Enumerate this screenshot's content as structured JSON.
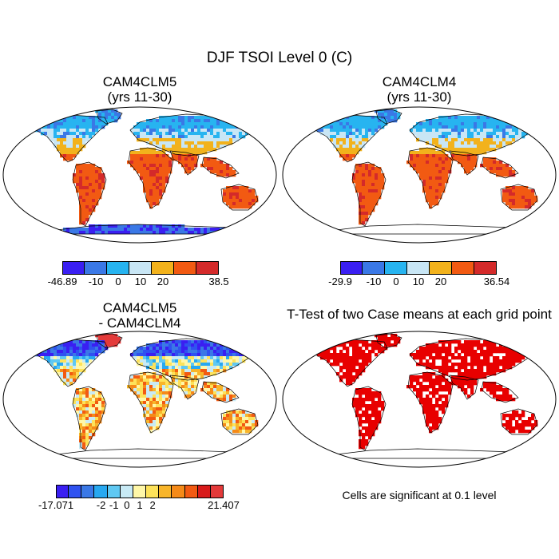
{
  "title": "DJF TSOI Level 0 (C)",
  "panels": [
    {
      "id": "p1",
      "title_line1": "CAM4CLM5",
      "title_line2": "(yrs 11-30)",
      "palette": "abs",
      "antarctica_colored": true
    },
    {
      "id": "p2",
      "title_line1": "CAM4CLM4",
      "title_line2": "(yrs 11-30)",
      "palette": "abs",
      "antarctica_colored": false
    },
    {
      "id": "p3",
      "title_line1": "CAM4CLM5",
      "title_line2": "- CAM4CLM4",
      "palette": "diff",
      "antarctica_colored": false
    },
    {
      "id": "p4",
      "title_line1": "T-Test of two Case means at each grid point",
      "title_line2": "",
      "palette": "sig",
      "antarctica_colored": false
    }
  ],
  "colorbars": [
    {
      "id": "cb1",
      "colors": [
        "#3a1ff2",
        "#3a78e6",
        "#27b4f0",
        "#c8e6f5",
        "#f2b21c",
        "#f25a12",
        "#d42a2a"
      ],
      "labels": [
        "-46.89",
        "-10",
        "0",
        "10",
        "20",
        "38.5"
      ]
    },
    {
      "id": "cb2",
      "colors": [
        "#3a1ff2",
        "#3a78e6",
        "#27b4f0",
        "#c8e6f5",
        "#f2b21c",
        "#f25a12",
        "#d42a2a"
      ],
      "labels": [
        "-29.9",
        "-10",
        "0",
        "10",
        "20",
        "36.54"
      ]
    },
    {
      "id": "cb3",
      "colors": [
        "#3a1ff2",
        "#2f52f0",
        "#3a78e6",
        "#27a8f0",
        "#5fc8f2",
        "#c8eaf5",
        "#fff7a8",
        "#fde25a",
        "#f8b52a",
        "#f58a18",
        "#f25a12",
        "#d81a1a",
        "#e43a3a"
      ],
      "labels": [
        "-17.071",
        "-2",
        "-1",
        "0",
        "1",
        "2",
        "21.407"
      ]
    }
  ],
  "significance_color": "#e80000",
  "significance_note": "Cells are significant at 0.1 level"
}
